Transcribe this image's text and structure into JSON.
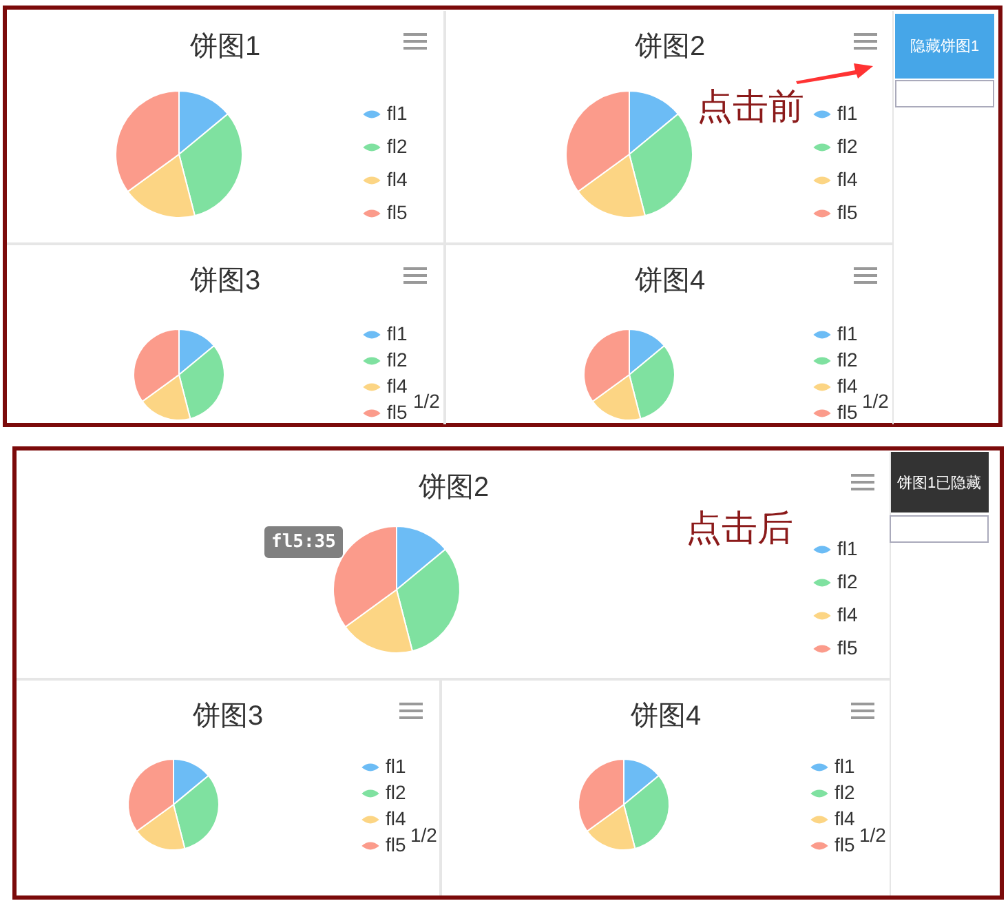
{
  "chart_data": [
    {
      "type": "pie",
      "title": "饼图1",
      "categories": [
        "fl1",
        "fl2",
        "fl4",
        "fl5"
      ],
      "values": [
        14,
        32,
        19,
        35
      ],
      "colors": [
        "#6cbcf5",
        "#7fe1a0",
        "#fcd584",
        "#fb9b8b"
      ],
      "legend": "right"
    },
    {
      "type": "pie",
      "title": "饼图2",
      "categories": [
        "fl1",
        "fl2",
        "fl4",
        "fl5"
      ],
      "values": [
        14,
        32,
        19,
        35
      ],
      "colors": [
        "#6cbcf5",
        "#7fe1a0",
        "#fcd584",
        "#fb9b8b"
      ],
      "legend": "right",
      "annotations": [
        "点击前"
      ]
    },
    {
      "type": "pie",
      "title": "饼图3",
      "categories": [
        "fl1",
        "fl2",
        "fl4",
        "fl5"
      ],
      "values": [
        14,
        32,
        19,
        35
      ],
      "colors": [
        "#6cbcf5",
        "#7fe1a0",
        "#fcd584",
        "#fb9b8b"
      ],
      "legend": "right",
      "annotations": [
        "1/2"
      ]
    },
    {
      "type": "pie",
      "title": "饼图4",
      "categories": [
        "fl1",
        "fl2",
        "fl4",
        "fl5"
      ],
      "values": [
        14,
        32,
        19,
        35
      ],
      "colors": [
        "#6cbcf5",
        "#7fe1a0",
        "#fcd584",
        "#fb9b8b"
      ],
      "legend": "right",
      "annotations": [
        "1/2"
      ]
    },
    {
      "type": "pie",
      "title": "饼图2",
      "categories": [
        "fl1",
        "fl2",
        "fl4",
        "fl5"
      ],
      "values": [
        14,
        32,
        19,
        35
      ],
      "colors": [
        "#6cbcf5",
        "#7fe1a0",
        "#fcd584",
        "#fb9b8b"
      ],
      "legend": "right",
      "annotations": [
        "fl5:35",
        "点击后"
      ]
    },
    {
      "type": "pie",
      "title": "饼图3",
      "categories": [
        "fl1",
        "fl2",
        "fl4",
        "fl5"
      ],
      "values": [
        14,
        32,
        19,
        35
      ],
      "colors": [
        "#6cbcf5",
        "#7fe1a0",
        "#fcd584",
        "#fb9b8b"
      ],
      "legend": "right",
      "annotations": [
        "1/2"
      ]
    },
    {
      "type": "pie",
      "title": "饼图4",
      "categories": [
        "fl1",
        "fl2",
        "fl4",
        "fl5"
      ],
      "values": [
        14,
        32,
        19,
        35
      ],
      "colors": [
        "#6cbcf5",
        "#7fe1a0",
        "#fcd584",
        "#fb9b8b"
      ],
      "legend": "right",
      "annotations": [
        "1/2"
      ]
    },
    {
      "type": "other",
      "annotations": [
        "隐藏饼图1",
        "饼图1已隐藏"
      ]
    }
  ]
}
